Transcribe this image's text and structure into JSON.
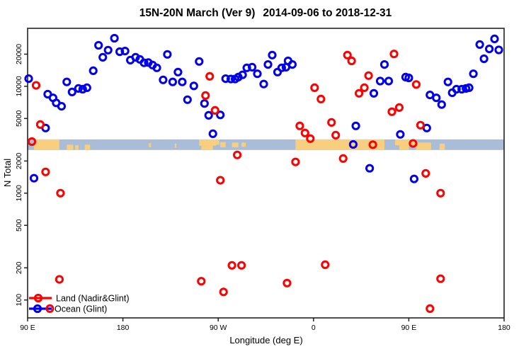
{
  "title_part1": "15N-20N March (Ver 9)",
  "title_part2": "2014-09-06 to 2018-12-31",
  "legend": {
    "items": [
      {
        "label": "Land (Nadir&Glint)",
        "color": "#FF0000"
      },
      {
        "label": "Ocean (Glint)",
        "color": "#0000EE"
      }
    ]
  },
  "colors": {
    "land_series": "#FF0000",
    "ocean_series": "#0000EE",
    "map_land": "#F7CF7E",
    "map_ocean": "#A9BDD9",
    "axis": "#222222"
  },
  "chart_data": {
    "type": "scatter",
    "title": "15N-20N March (Ver 9)   2014-09-06 to 2018-12-31",
    "xlabel": "Longitude (deg E)",
    "ylabel": "N Total",
    "x_axis": {
      "range": [
        90,
        540
      ],
      "ticks": [
        {
          "v": 90,
          "label": "90 E"
        },
        {
          "v": 180,
          "label": "180"
        },
        {
          "v": 270,
          "label": "90 W"
        },
        {
          "v": 360,
          "label": "0"
        },
        {
          "v": 450,
          "label": "90 E"
        },
        {
          "v": 540,
          "label": "180"
        }
      ]
    },
    "y_axis": {
      "scale": "log10",
      "range": [
        68,
        34900
      ],
      "ticks": [
        {
          "v": 100,
          "label": "100"
        },
        {
          "v": 200,
          "label": "200"
        },
        {
          "v": 500,
          "label": "500"
        },
        {
          "v": 1000,
          "label": "1000"
        },
        {
          "v": 2000,
          "label": "2000"
        },
        {
          "v": 5000,
          "label": "5000"
        },
        {
          "v": 10000,
          "label": "10000"
        },
        {
          "v": 20000,
          "label": "20000"
        }
      ]
    },
    "map_band": {
      "value_range": [
        2535,
        3185
      ],
      "ocean_color": "#A9BDD9",
      "land_color": "#F7CF7E",
      "land_segments": [
        {
          "from": 96,
          "to": 120,
          "top": 0,
          "h": 1
        },
        {
          "from": 127,
          "to": 133,
          "top": 0.5,
          "h": 0.5
        },
        {
          "from": 135,
          "to": 138,
          "top": 0.55,
          "h": 0.45
        },
        {
          "from": 144,
          "to": 149,
          "top": 0.5,
          "h": 0.5
        },
        {
          "from": 204.5,
          "to": 206.5,
          "top": 0.35,
          "h": 0.4
        },
        {
          "from": 229,
          "to": 230.5,
          "top": 0.4,
          "h": 0.4
        },
        {
          "from": 252,
          "to": 268,
          "top": 0,
          "h": 0.6
        },
        {
          "from": 254,
          "to": 265,
          "top": 0.6,
          "h": 0.4
        },
        {
          "from": 268,
          "to": 271,
          "top": 0,
          "h": 0.5
        },
        {
          "from": 272,
          "to": 277,
          "top": 0.25,
          "h": 0.5
        },
        {
          "from": 283,
          "to": 289,
          "top": 0.3,
          "h": 0.45
        },
        {
          "from": 292,
          "to": 296,
          "top": 0.3,
          "h": 0.4
        },
        {
          "from": 343,
          "to": 427,
          "top": 0,
          "h": 1
        },
        {
          "from": 437,
          "to": 456,
          "top": 0,
          "h": 0.55
        },
        {
          "from": 441,
          "to": 450,
          "top": 0.55,
          "h": 0.45
        },
        {
          "from": 457,
          "to": 471,
          "top": 0.3,
          "h": 0.7
        },
        {
          "from": 479,
          "to": 484,
          "top": 0.4,
          "h": 0.6
        }
      ]
    },
    "series": [
      {
        "name": "Ocean (Glint)",
        "color": "#0000EE",
        "points": [
          [
            91,
            11800
          ],
          [
            96,
            1380
          ],
          [
            107,
            4070
          ],
          [
            109,
            8450
          ],
          [
            114,
            7800
          ],
          [
            117,
            7000
          ],
          [
            122,
            6500
          ],
          [
            127,
            11000
          ],
          [
            132,
            8850
          ],
          [
            138,
            9550
          ],
          [
            142,
            9400
          ],
          [
            146,
            9700
          ],
          [
            152,
            14000
          ],
          [
            157,
            24200
          ],
          [
            161,
            18700
          ],
          [
            166,
            21800
          ],
          [
            172,
            28200
          ],
          [
            177,
            21100
          ],
          [
            182,
            21400
          ],
          [
            187,
            17600
          ],
          [
            192,
            18700
          ],
          [
            196,
            17900
          ],
          [
            200,
            16600
          ],
          [
            204,
            16700
          ],
          [
            208,
            15800
          ],
          [
            212,
            14900
          ],
          [
            218,
            11500
          ],
          [
            222,
            19900
          ],
          [
            227,
            11000
          ],
          [
            232,
            13600
          ],
          [
            236,
            11000
          ],
          [
            241,
            7500
          ],
          [
            247,
            10100
          ],
          [
            252,
            17100
          ],
          [
            257,
            6900
          ],
          [
            261,
            5350
          ],
          [
            265,
            3600
          ],
          [
            272,
            5400
          ],
          [
            277,
            11800
          ],
          [
            282,
            11700
          ],
          [
            286,
            11700
          ],
          [
            289,
            12200
          ],
          [
            293,
            12800
          ],
          [
            297,
            14900
          ],
          [
            302,
            15100
          ],
          [
            307,
            13100
          ],
          [
            313,
            10500
          ],
          [
            317,
            16000
          ],
          [
            321,
            19600
          ],
          [
            326,
            13600
          ],
          [
            330,
            14900
          ],
          [
            334,
            15100
          ],
          [
            336,
            17300
          ],
          [
            340,
            16000
          ],
          [
            397.5,
            2860
          ],
          [
            400,
            4260
          ],
          [
            413,
            1710
          ],
          [
            417,
            8600
          ],
          [
            423,
            11200
          ],
          [
            427,
            16000
          ],
          [
            431,
            11200
          ],
          [
            442,
            3550
          ],
          [
            447,
            12200
          ],
          [
            450,
            12000
          ],
          [
            455,
            1360
          ],
          [
            467,
            4070
          ],
          [
            470,
            8300
          ],
          [
            476,
            7800
          ],
          [
            481,
            6750
          ],
          [
            487,
            11000
          ],
          [
            491,
            8700
          ],
          [
            495,
            9400
          ],
          [
            500,
            9400
          ],
          [
            504,
            9550
          ],
          [
            507,
            9700
          ],
          [
            511,
            13100
          ],
          [
            517,
            24600
          ],
          [
            521,
            18100
          ],
          [
            526,
            22400
          ],
          [
            531,
            27800
          ],
          [
            535,
            21900
          ]
        ]
      },
      {
        "name": "Land (Nadir&Glint)",
        "color": "#FF0000",
        "points": [
          [
            94,
            3040
          ],
          [
            98,
            10200
          ],
          [
            102,
            4390
          ],
          [
            107,
            1580
          ],
          [
            111,
            83
          ],
          [
            120,
            156
          ],
          [
            121,
            1000
          ],
          [
            254,
            150
          ],
          [
            258,
            8200
          ],
          [
            262,
            12400
          ],
          [
            267,
            5950
          ],
          [
            272,
            1320
          ],
          [
            275,
            119
          ],
          [
            283,
            211
          ],
          [
            288,
            2280
          ],
          [
            292,
            211
          ],
          [
            335,
            144
          ],
          [
            343,
            1960
          ],
          [
            347,
            4260
          ],
          [
            352,
            3660
          ],
          [
            357,
            3240
          ],
          [
            361,
            9700
          ],
          [
            367,
            7600
          ],
          [
            371,
            214
          ],
          [
            377,
            4590
          ],
          [
            381,
            3490
          ],
          [
            388,
            2110
          ],
          [
            392,
            19600
          ],
          [
            396,
            17300
          ],
          [
            403,
            8600
          ],
          [
            408,
            9700
          ],
          [
            412,
            12600
          ],
          [
            416,
            2840
          ],
          [
            434,
            5780
          ],
          [
            436,
            20100
          ],
          [
            441,
            6330
          ],
          [
            454,
            2920
          ],
          [
            457,
            10400
          ],
          [
            461,
            4330
          ],
          [
            466,
            1530
          ],
          [
            470,
            83
          ],
          [
            480,
            158
          ],
          [
            480,
            1000
          ]
        ]
      }
    ]
  }
}
